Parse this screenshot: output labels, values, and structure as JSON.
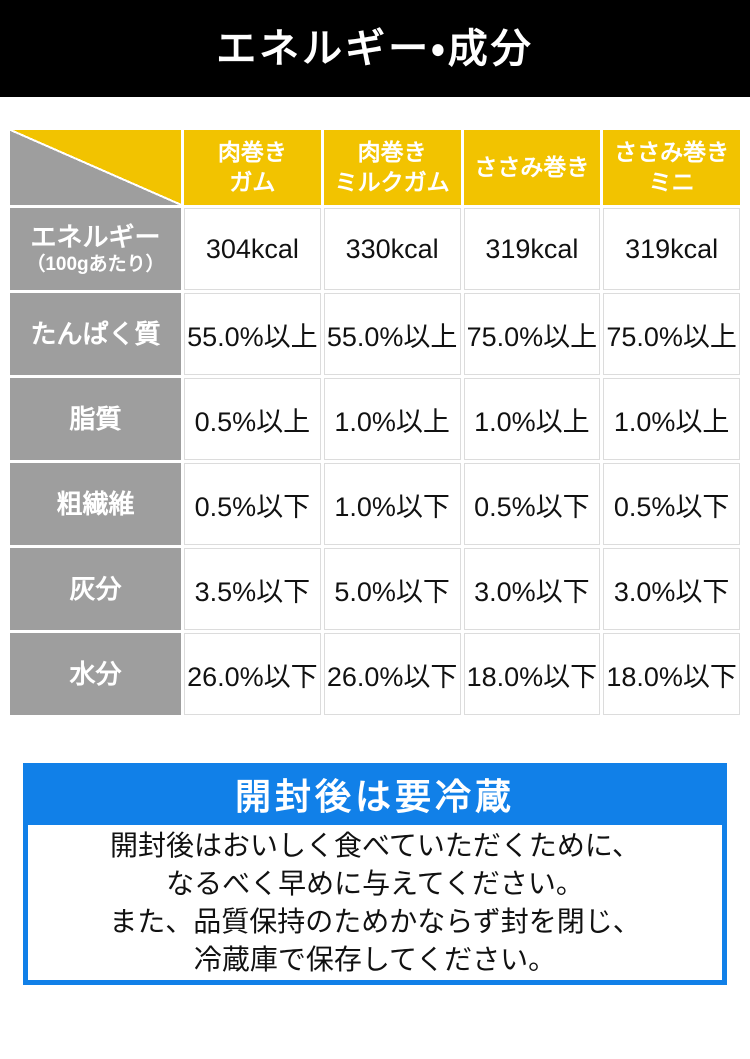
{
  "page": {
    "title": "エネルギー・成分"
  },
  "colors": {
    "banner_black": "#000000",
    "header_yellow": "#F2C300",
    "label_gray": "#9E9E9E",
    "notice_blue": "#1180E8"
  },
  "table": {
    "columns": [
      "肉巻き\nガム",
      "肉巻き\nミルクガム",
      "ささみ巻き",
      "ささみ巻き\nミニ"
    ],
    "rows": [
      {
        "label": "エネルギー",
        "label_sub": "（100gあたり）",
        "values": [
          "304kcal",
          "330kcal",
          "319kcal",
          "319kcal"
        ]
      },
      {
        "label": "たんぱく質",
        "values": [
          "55.0%以上",
          "55.0%以上",
          "75.0%以上",
          "75.0%以上"
        ]
      },
      {
        "label": "脂質",
        "values": [
          "0.5%以上",
          "1.0%以上",
          "1.0%以上",
          "1.0%以上"
        ]
      },
      {
        "label": "粗繊維",
        "values": [
          "0.5%以下",
          "1.0%以下",
          "0.5%以下",
          "0.5%以下"
        ]
      },
      {
        "label": "灰分",
        "values": [
          "3.5%以下",
          "5.0%以下",
          "3.0%以下",
          "3.0%以下"
        ]
      },
      {
        "label": "水分",
        "values": [
          "26.0%以下",
          "26.0%以下",
          "18.0%以下",
          "18.0%以下"
        ]
      }
    ]
  },
  "notice": {
    "heading": "開封後は要冷蔵",
    "body": "開封後はおいしく食べていただくために、\nなるべく早めに与えてください。\nまた、品質保持のためかならず封を閉じ、\n冷蔵庫で保存してください。"
  }
}
